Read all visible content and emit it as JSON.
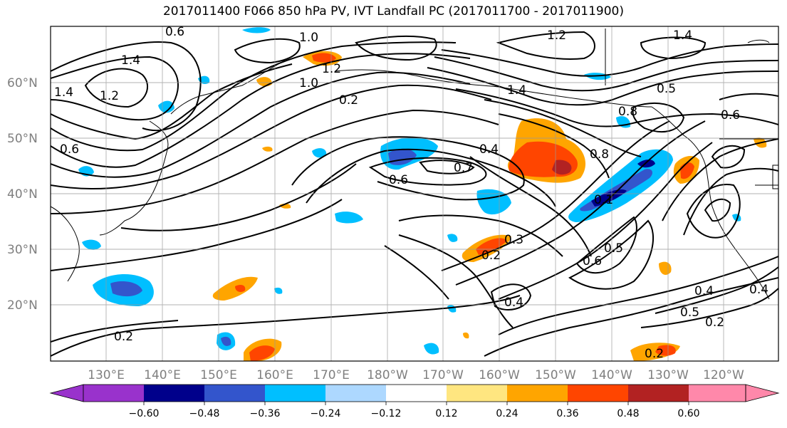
{
  "title": "2017011400 F066 850 hPa PV, IVT Landfall PC (2017011700 - 2017011900)",
  "map": {
    "lat_ticks": [
      "60°N",
      "50°N",
      "40°N",
      "30°N",
      "20°N"
    ],
    "lon_ticks": [
      "130°E",
      "140°E",
      "150°E",
      "160°E",
      "170°E",
      "180°W",
      "170°W",
      "160°W",
      "150°W",
      "140°W",
      "130°W",
      "120°W"
    ],
    "contour_labels": [
      "0.6",
      "1.0",
      "1.2",
      "1.4",
      "1.2",
      "1.4",
      "1.4",
      "1.2",
      "1.0",
      "0.2",
      "1.4",
      "0.8",
      "0.5",
      "0.6",
      "0.4",
      "0.7",
      "0.6",
      "0.8",
      "0.1",
      "0.3",
      "0.2",
      "0.6",
      "0.5",
      "0.4",
      "0.4",
      "0.5",
      "0.4",
      "0.2",
      "0.2",
      "0.2",
      "0.6"
    ]
  },
  "colorbar": {
    "ticks": [
      "−0.60",
      "−0.48",
      "−0.36",
      "−0.24",
      "−0.12",
      "0.12",
      "0.24",
      "0.36",
      "0.48",
      "0.60"
    ],
    "colors": [
      "#9932cc",
      "#00008b",
      "#3355cc",
      "#00bfff",
      "#add8ff",
      "#ffffff",
      "#ffe680",
      "#ffa500",
      "#ff4500",
      "#b22222",
      "#ff88aa"
    ]
  },
  "colors": {
    "neg_light": "#add8ff",
    "neg_mid": "#00bfff",
    "neg_strong": "#3355cc",
    "neg_max": "#00008b",
    "pos_light": "#ffe680",
    "pos_mid": "#ffa500",
    "pos_strong": "#ff4500",
    "pos_max": "#b22222"
  }
}
